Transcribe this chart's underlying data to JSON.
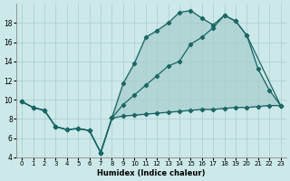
{
  "xlabel": "Humidex (Indice chaleur)",
  "background_color": "#cce8e8",
  "grid_color": "#aacccc",
  "line_color": "#1a6666",
  "xlim": [
    -0.5,
    23.5
  ],
  "ylim": [
    4,
    20
  ],
  "yticks": [
    4,
    6,
    8,
    10,
    12,
    14,
    16,
    18
  ],
  "xticks": [
    0,
    1,
    2,
    3,
    4,
    5,
    6,
    7,
    8,
    9,
    10,
    11,
    12,
    13,
    14,
    15,
    16,
    17,
    18,
    19,
    20,
    21,
    22,
    23
  ],
  "line_bottom_x": [
    0,
    1,
    2,
    3,
    4,
    5,
    6,
    7,
    8,
    9,
    10,
    11,
    12,
    13,
    14,
    15,
    16,
    17,
    18,
    19,
    20,
    21,
    22,
    23
  ],
  "line_bottom_y": [
    9.8,
    9.2,
    8.9,
    7.2,
    6.9,
    7.0,
    6.8,
    4.5,
    8.1,
    8.3,
    8.4,
    8.5,
    8.6,
    8.7,
    8.8,
    8.9,
    9.0,
    9.0,
    9.1,
    9.2,
    9.2,
    9.3,
    9.4,
    9.4
  ],
  "line_top_x": [
    0,
    1,
    2,
    3,
    4,
    5,
    6,
    7,
    8,
    9,
    10,
    11,
    12,
    13,
    14,
    15,
    16,
    17,
    18,
    19,
    20,
    21,
    22,
    23
  ],
  "line_top_y": [
    9.8,
    9.2,
    8.9,
    7.2,
    6.9,
    7.0,
    6.8,
    4.5,
    8.1,
    11.7,
    13.8,
    16.5,
    17.2,
    18.0,
    19.1,
    19.3,
    18.5,
    17.8,
    18.8,
    18.2,
    16.7,
    13.2,
    11.0,
    9.4
  ],
  "line_mid_x": [
    0,
    1,
    2,
    3,
    4,
    5,
    6,
    7,
    8,
    9,
    10,
    11,
    12,
    13,
    14,
    15,
    16,
    17,
    18,
    19,
    20,
    23
  ],
  "line_mid_y": [
    9.8,
    9.2,
    8.9,
    7.2,
    6.9,
    7.0,
    6.8,
    4.5,
    8.1,
    9.5,
    10.5,
    11.5,
    12.5,
    13.5,
    14.0,
    15.8,
    16.5,
    17.5,
    18.8,
    18.2,
    16.7,
    9.4
  ]
}
